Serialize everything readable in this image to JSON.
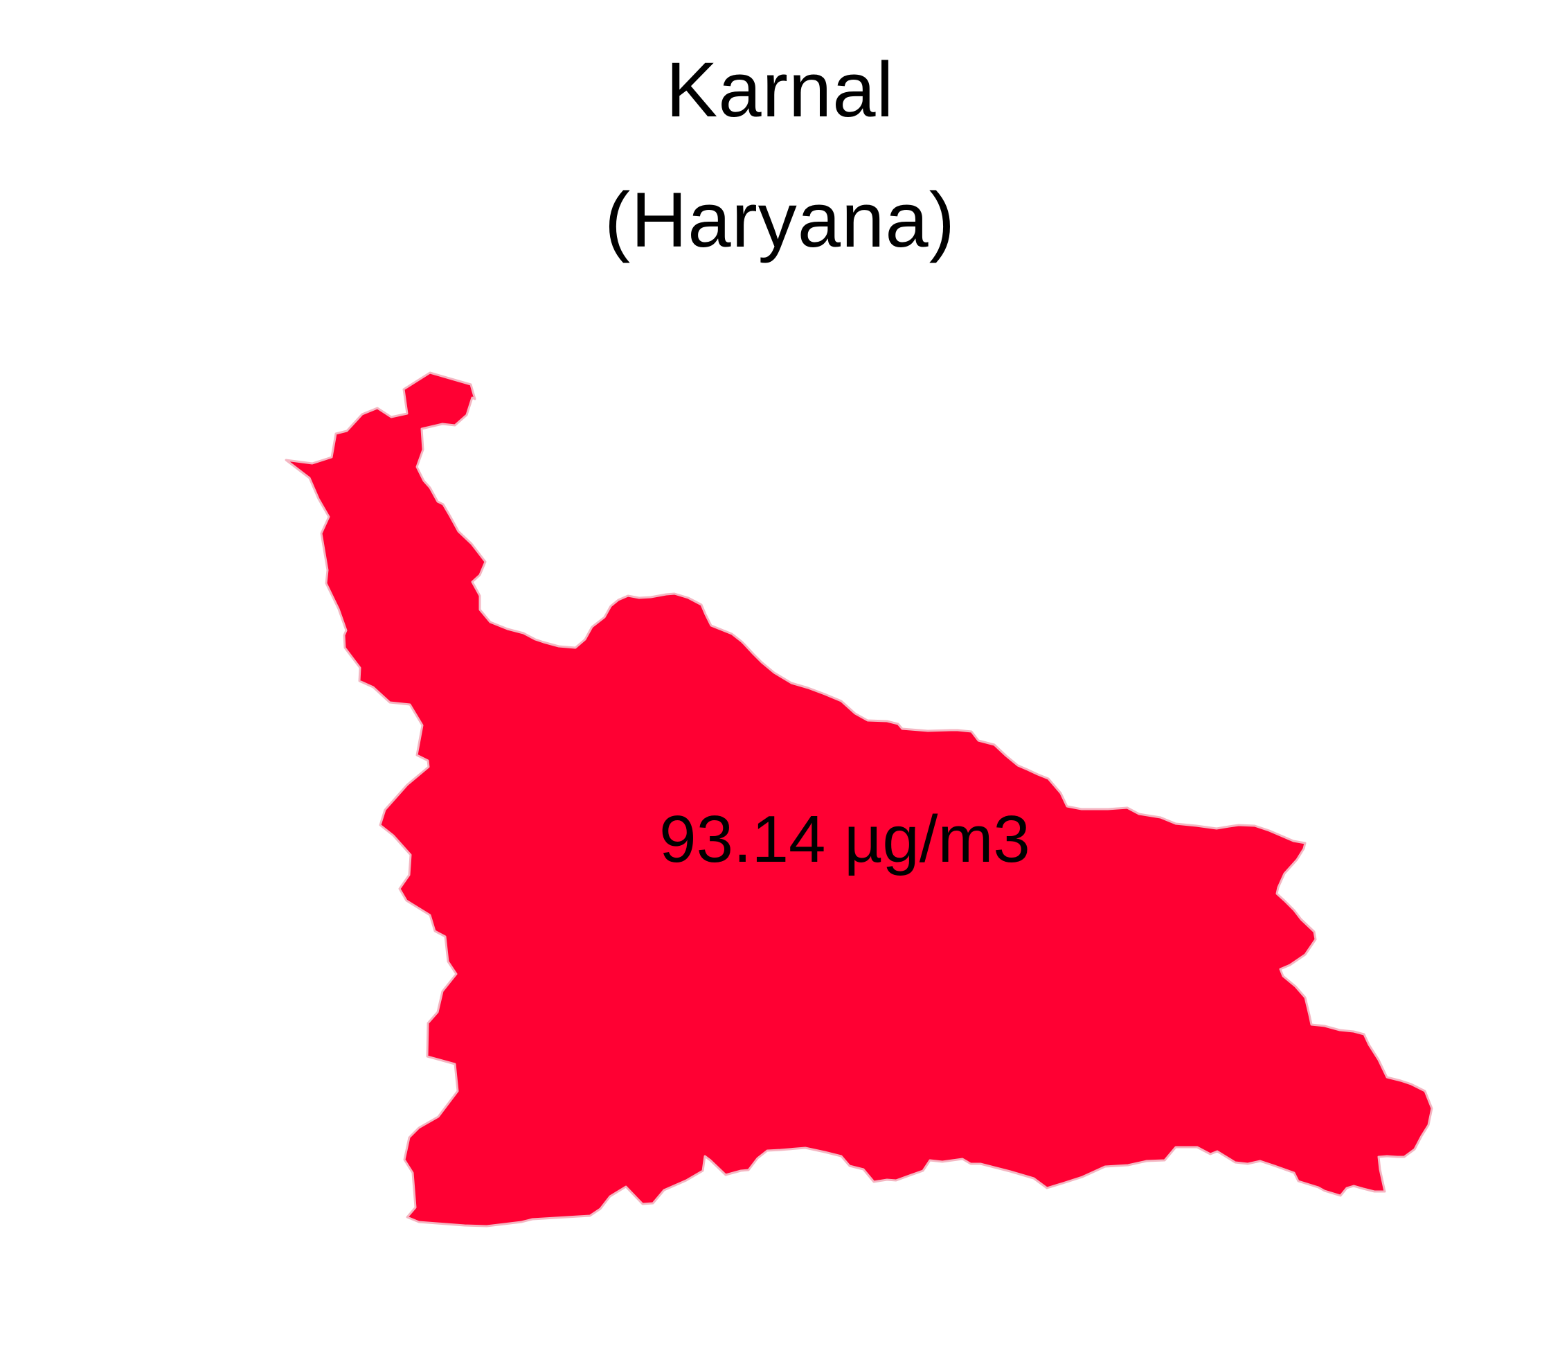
{
  "map": {
    "district": "Karnal",
    "state": "(Haryana)",
    "value_label": "93.14 µg/m3",
    "fill_color": "#ff0033",
    "outline_color": "#f4b6c2"
  }
}
